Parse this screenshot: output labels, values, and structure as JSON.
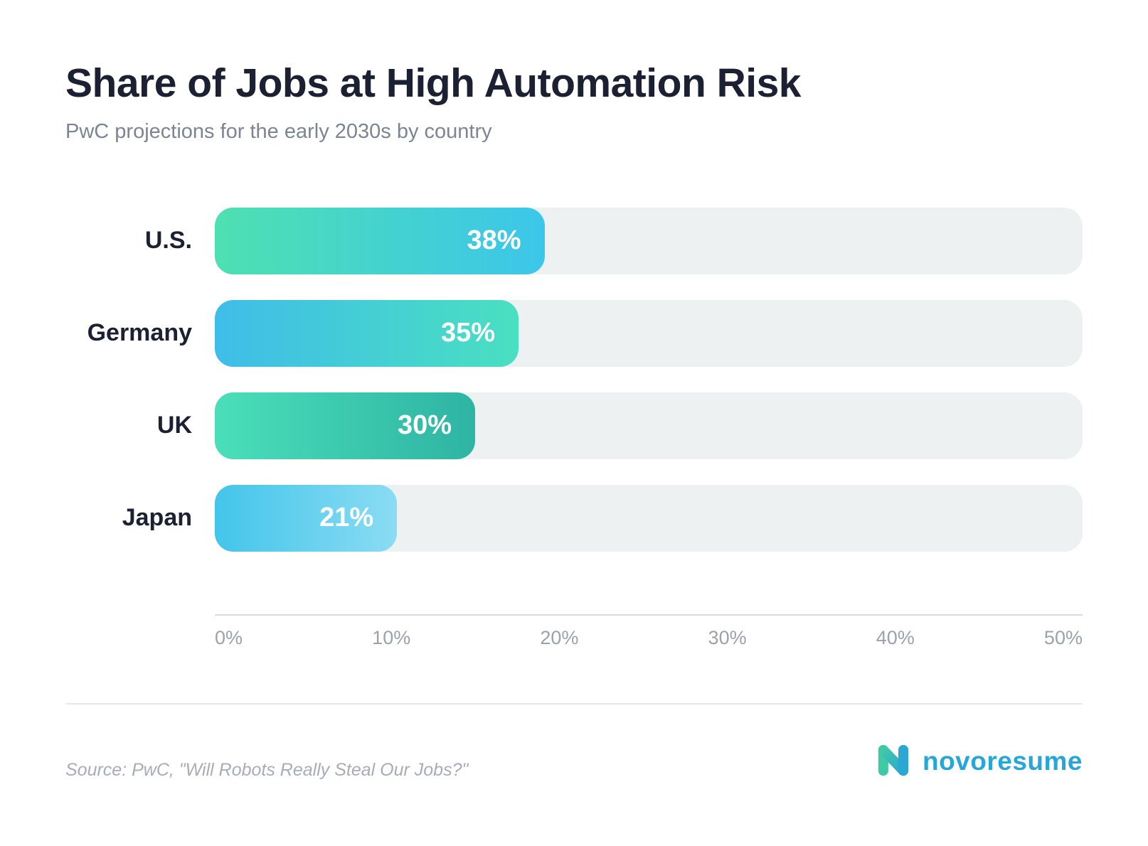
{
  "header": {
    "title": "Share of Jobs at High Automation Risk",
    "subtitle": "PwC projections for the early 2030s by country"
  },
  "chart_data": {
    "type": "bar",
    "orientation": "horizontal",
    "title": "Share of Jobs at High Automation Risk",
    "subtitle": "PwC projections for the early 2030s by country",
    "categories": [
      "U.S.",
      "Germany",
      "UK",
      "Japan"
    ],
    "values": [
      38,
      35,
      30,
      21
    ],
    "value_labels": [
      "38%",
      "35%",
      "30%",
      "21%"
    ],
    "axis_ticks": [
      "0%",
      "10%",
      "20%",
      "30%",
      "40%",
      "50%"
    ],
    "xlim": [
      0,
      50
    ],
    "grid": "off",
    "legend": "none",
    "track_color": "#eef1f2",
    "bar_gradients": [
      [
        "#4ee0b1",
        "#3cc6ea"
      ],
      [
        "#3fbde9",
        "#4adfc1"
      ],
      [
        "#4adfb9",
        "#2eb4a4"
      ],
      [
        "#43c5ea",
        "#8adcf3"
      ]
    ]
  },
  "footer": {
    "source": "Source: PwC, \"Will Robots Really Steal Our Jobs?\"",
    "brand": "novoresume"
  },
  "colors": {
    "title_text": "#1b2032",
    "subtitle_text": "#7c8593",
    "tick_text": "#9aa2ac",
    "brand_blue": "#29a6d8",
    "brand_green": "#3fc9a5"
  }
}
